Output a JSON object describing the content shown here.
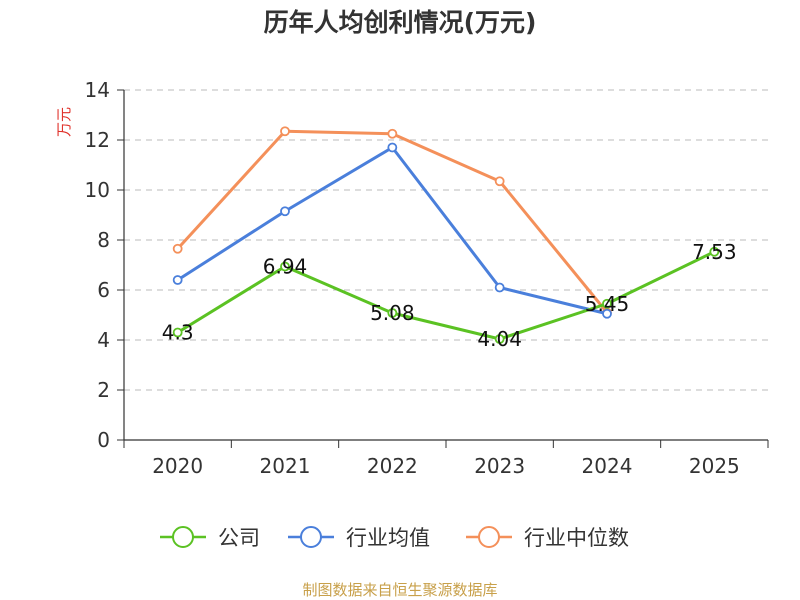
{
  "chart_data": {
    "type": "line",
    "title": "历年人均创利情况(万元)",
    "ylabel": "万元",
    "xlabel": "",
    "categories": [
      "2020",
      "2021",
      "2022",
      "2023",
      "2024",
      "2025"
    ],
    "ylim": [
      0,
      14
    ],
    "yticks": [
      0,
      2,
      4,
      6,
      8,
      10,
      12,
      14
    ],
    "grid": true,
    "legend_position": "bottom",
    "series": [
      {
        "name": "公司",
        "color": "#5bc223",
        "values": [
          4.3,
          6.94,
          5.08,
          4.04,
          5.45,
          7.53
        ],
        "labels": [
          "4.3",
          "6.94",
          "5.08",
          "4.04",
          "5.45",
          "7.53"
        ]
      },
      {
        "name": "行业均值",
        "color": "#4a7fdb",
        "values": [
          6.4,
          9.15,
          11.7,
          6.1,
          5.05,
          null
        ]
      },
      {
        "name": "行业中位数",
        "color": "#f4905a",
        "values": [
          7.65,
          12.35,
          12.25,
          10.35,
          5.1,
          null
        ]
      }
    ]
  },
  "source": {
    "text": "制图数据来自恒生聚源数据库",
    "color": "#c8a04a"
  },
  "ylabel_color": "#e0322b"
}
